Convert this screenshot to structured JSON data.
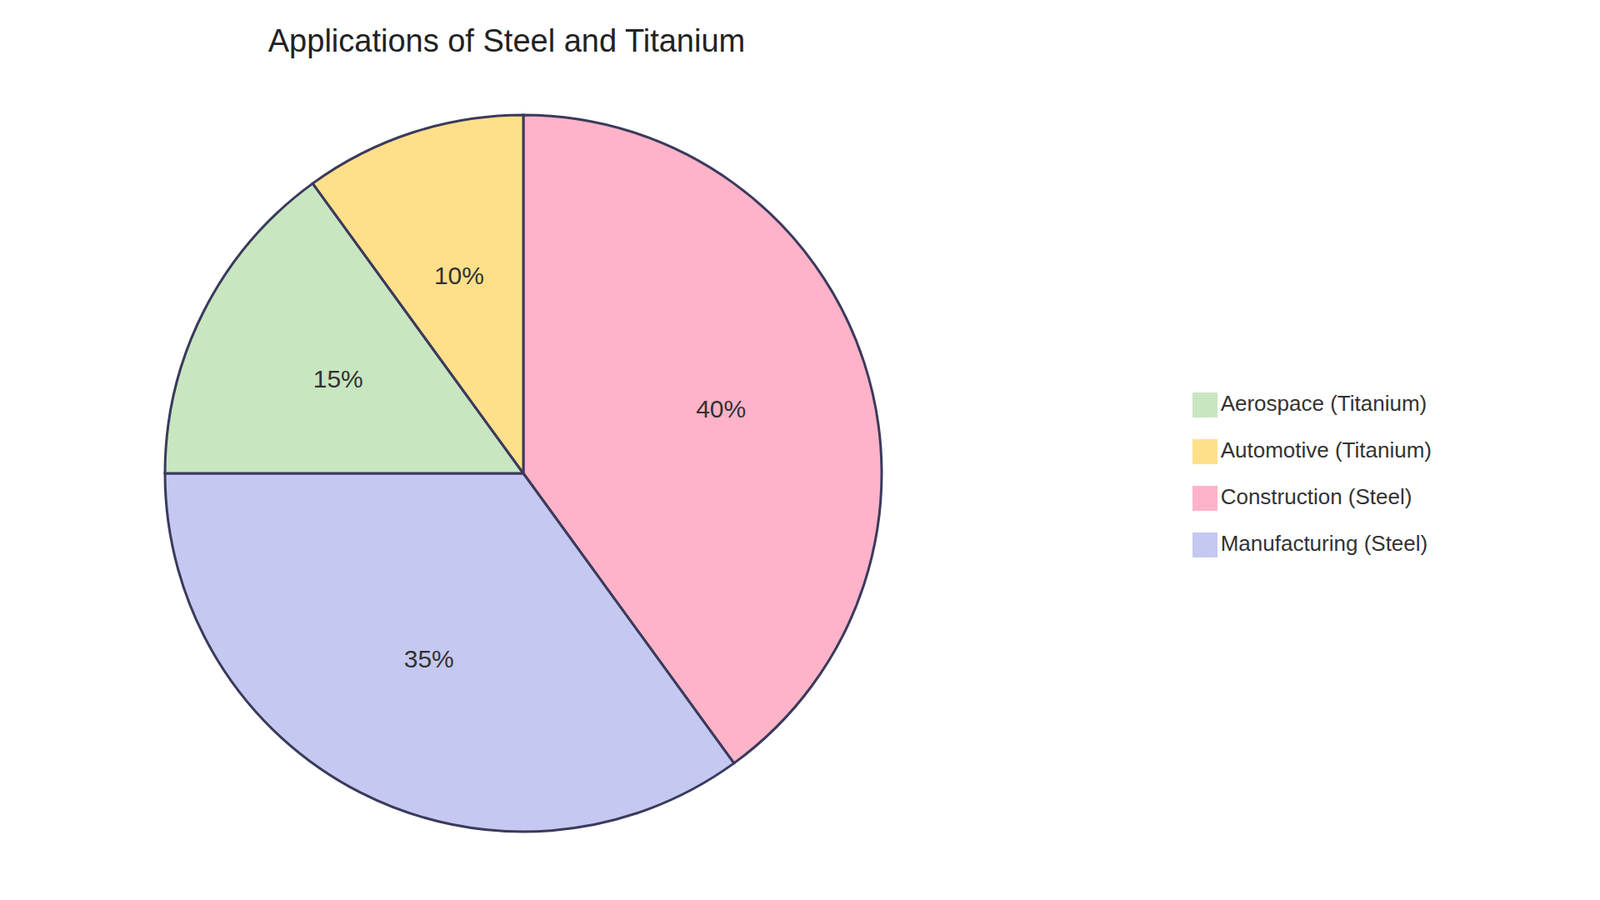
{
  "chart_data": {
    "type": "pie",
    "title": "Applications of Steel and Titanium",
    "categories": [
      "Construction (Steel)",
      "Manufacturing (Steel)",
      "Aerospace (Titanium)",
      "Automotive (Titanium)"
    ],
    "values": [
      40,
      35,
      15,
      10
    ],
    "value_labels": [
      "40%",
      "35%",
      "15%",
      "10%"
    ],
    "colors": [
      "#FFB3C8",
      "#C5C8F0",
      "#C8E6C0",
      "#FFE08A"
    ],
    "data_labels": true,
    "legend": "right"
  }
}
